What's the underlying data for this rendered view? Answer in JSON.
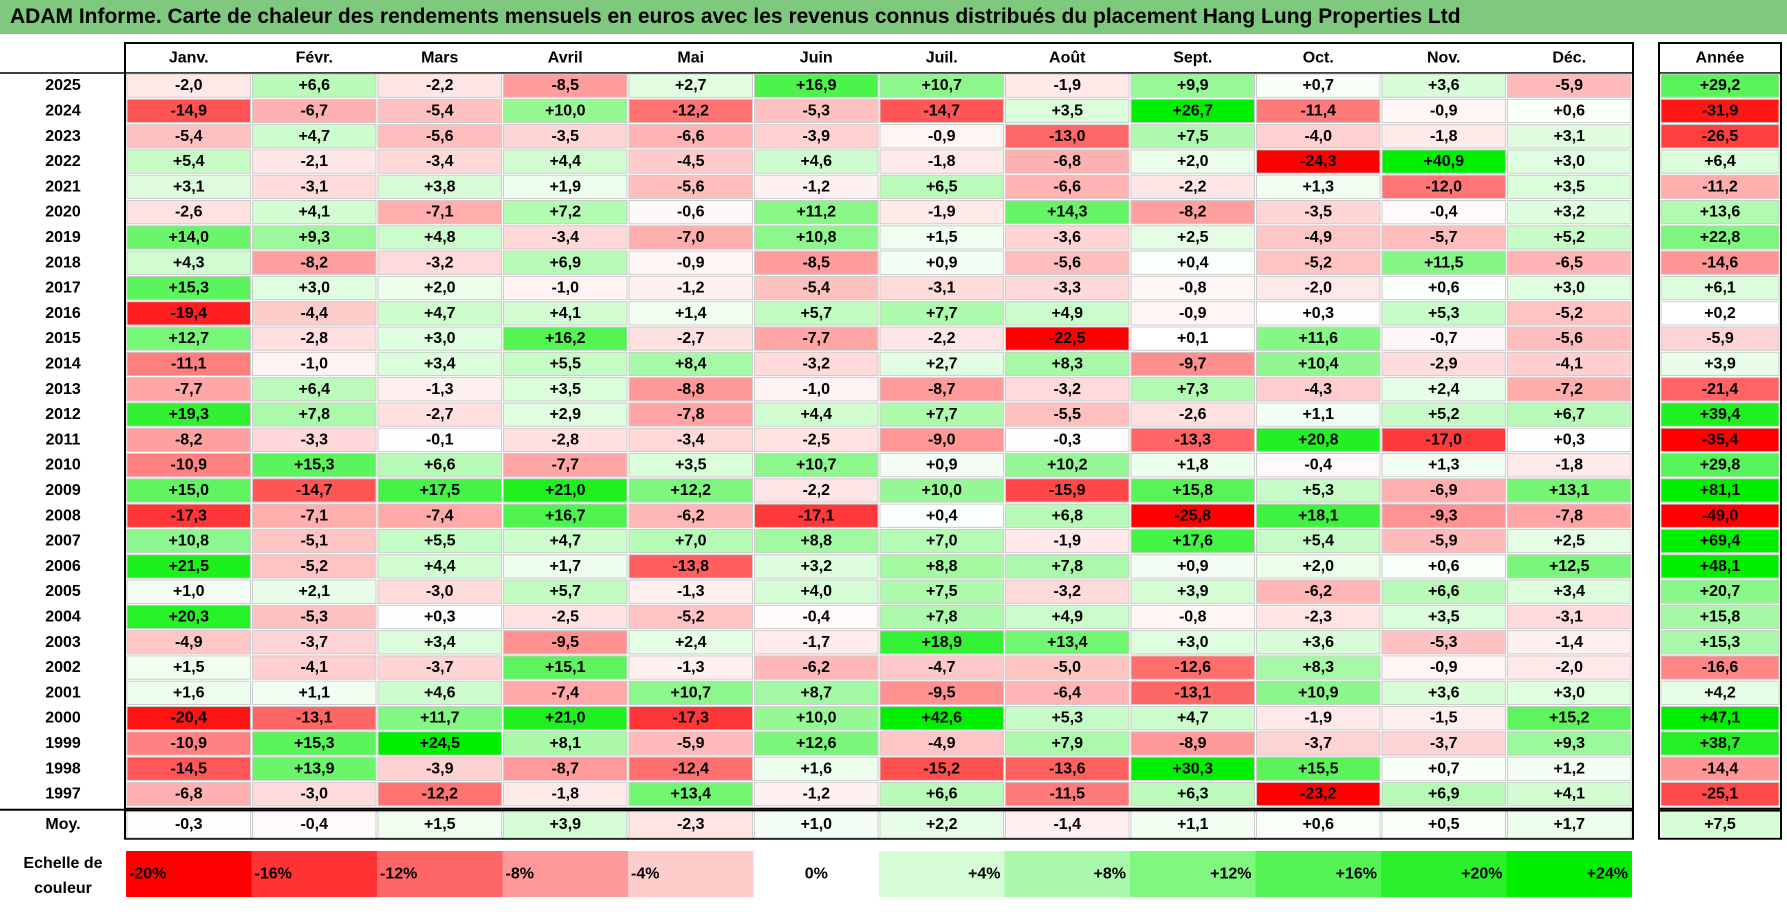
{
  "title": "ADAM Informe. Carte de chaleur des rendements mensuels en euros avec les revenus connus distribués du placement Hang Lung Properties Ltd",
  "chart_data": {
    "type": "heatmap",
    "title": "ADAM Informe. Carte de chaleur des rendements mensuels en euros avec les revenus connus distribués du placement Hang Lung Properties Ltd",
    "months": [
      "Janv.",
      "Févr.",
      "Mars",
      "Avril",
      "Mai",
      "Juin",
      "Juil.",
      "Août",
      "Sept.",
      "Oct.",
      "Nov.",
      "Déc."
    ],
    "year_header": "Année",
    "avg_label": "Moy.",
    "rows": [
      {
        "year": "2025",
        "values": [
          "-2,0",
          "+6,6",
          "-2,2",
          "-8,5",
          "+2,7",
          "+16,9",
          "+10,7",
          "-1,9",
          "+9,9",
          "+0,7",
          "+3,6",
          "-5,9"
        ],
        "annual": "+29,2"
      },
      {
        "year": "2024",
        "values": [
          "-14,9",
          "-6,7",
          "-5,4",
          "+10,0",
          "-12,2",
          "-5,3",
          "-14,7",
          "+3,5",
          "+26,7",
          "-11,4",
          "-0,9",
          "+0,6"
        ],
        "annual": "-31,9"
      },
      {
        "year": "2023",
        "values": [
          "-5,4",
          "+4,7",
          "-5,6",
          "-3,5",
          "-6,6",
          "-3,9",
          "-0,9",
          "-13,0",
          "+7,5",
          "-4,0",
          "-1,8",
          "+3,1"
        ],
        "annual": "-26,5"
      },
      {
        "year": "2022",
        "values": [
          "+5,4",
          "-2,1",
          "-3,4",
          "+4,4",
          "-4,5",
          "+4,6",
          "-1,8",
          "-6,8",
          "+2,0",
          "-24,3",
          "+40,9",
          "+3,0"
        ],
        "annual": "+6,4"
      },
      {
        "year": "2021",
        "values": [
          "+3,1",
          "-3,1",
          "+3,8",
          "+1,9",
          "-5,6",
          "-1,2",
          "+6,5",
          "-6,6",
          "-2,2",
          "+1,3",
          "-12,0",
          "+3,5"
        ],
        "annual": "-11,2"
      },
      {
        "year": "2020",
        "values": [
          "-2,6",
          "+4,1",
          "-7,1",
          "+7,2",
          "-0,6",
          "+11,2",
          "-1,9",
          "+14,3",
          "-8,2",
          "-3,5",
          "-0,4",
          "+3,2"
        ],
        "annual": "+13,6"
      },
      {
        "year": "2019",
        "values": [
          "+14,0",
          "+9,3",
          "+4,8",
          "-3,4",
          "-7,0",
          "+10,8",
          "+1,5",
          "-3,6",
          "+2,5",
          "-4,9",
          "-5,7",
          "+5,2"
        ],
        "annual": "+22,8"
      },
      {
        "year": "2018",
        "values": [
          "+4,3",
          "-8,2",
          "-3,2",
          "+6,9",
          "-0,9",
          "-8,5",
          "+0,9",
          "-5,6",
          "+0,4",
          "-5,2",
          "+11,5",
          "-6,5"
        ],
        "annual": "-14,6"
      },
      {
        "year": "2017",
        "values": [
          "+15,3",
          "+3,0",
          "+2,0",
          "-1,0",
          "-1,2",
          "-5,4",
          "-3,1",
          "-3,3",
          "-0,8",
          "-2,0",
          "+0,6",
          "+3,0"
        ],
        "annual": "+6,1"
      },
      {
        "year": "2016",
        "values": [
          "-19,4",
          "-4,4",
          "+4,7",
          "+4,1",
          "+1,4",
          "+5,7",
          "+7,7",
          "+4,9",
          "-0,9",
          "+0,3",
          "+5,3",
          "-5,2"
        ],
        "annual": "+0,2"
      },
      {
        "year": "2015",
        "values": [
          "+12,7",
          "-2,8",
          "+3,0",
          "+16,2",
          "-2,7",
          "-7,7",
          "-2,2",
          "-22,5",
          "+0,1",
          "+11,6",
          "-0,7",
          "-5,6"
        ],
        "annual": "-5,9"
      },
      {
        "year": "2014",
        "values": [
          "-11,1",
          "-1,0",
          "+3,4",
          "+5,5",
          "+8,4",
          "-3,2",
          "+2,7",
          "+8,3",
          "-9,7",
          "+10,4",
          "-2,9",
          "-4,1"
        ],
        "annual": "+3,9"
      },
      {
        "year": "2013",
        "values": [
          "-7,7",
          "+6,4",
          "-1,3",
          "+3,5",
          "-8,8",
          "-1,0",
          "-8,7",
          "-3,2",
          "+7,3",
          "-4,3",
          "+2,4",
          "-7,2"
        ],
        "annual": "-21,4"
      },
      {
        "year": "2012",
        "values": [
          "+19,3",
          "+7,8",
          "-2,7",
          "+2,9",
          "-7,8",
          "+4,4",
          "+7,7",
          "-5,5",
          "-2,6",
          "+1,1",
          "+5,2",
          "+6,7"
        ],
        "annual": "+39,4"
      },
      {
        "year": "2011",
        "values": [
          "-8,2",
          "-3,3",
          "-0,1",
          "-2,8",
          "-3,4",
          "-2,5",
          "-9,0",
          "-0,3",
          "-13,3",
          "+20,8",
          "-17,0",
          "+0,3"
        ],
        "annual": "-35,4"
      },
      {
        "year": "2010",
        "values": [
          "-10,9",
          "+15,3",
          "+6,6",
          "-7,7",
          "+3,5",
          "+10,7",
          "+0,9",
          "+10,2",
          "+1,8",
          "-0,4",
          "+1,3",
          "-1,8"
        ],
        "annual": "+29,8"
      },
      {
        "year": "2009",
        "values": [
          "+15,0",
          "-14,7",
          "+17,5",
          "+21,0",
          "+12,2",
          "-2,2",
          "+10,0",
          "-15,9",
          "+15,8",
          "+5,3",
          "-6,9",
          "+13,1"
        ],
        "annual": "+81,1"
      },
      {
        "year": "2008",
        "values": [
          "-17,3",
          "-7,1",
          "-7,4",
          "+16,7",
          "-6,2",
          "-17,1",
          "+0,4",
          "+6,8",
          "-25,8",
          "+18,1",
          "-9,3",
          "-7,8"
        ],
        "annual": "-49,0"
      },
      {
        "year": "2007",
        "values": [
          "+10,8",
          "-5,1",
          "+5,5",
          "+4,7",
          "+7,0",
          "+8,8",
          "+7,0",
          "-1,9",
          "+17,6",
          "+5,4",
          "-5,9",
          "+2,5"
        ],
        "annual": "+69,4"
      },
      {
        "year": "2006",
        "values": [
          "+21,5",
          "-5,2",
          "+4,4",
          "+1,7",
          "-13,8",
          "+3,2",
          "+8,8",
          "+7,8",
          "+0,9",
          "+2,0",
          "+0,6",
          "+12,5"
        ],
        "annual": "+48,1"
      },
      {
        "year": "2005",
        "values": [
          "+1,0",
          "+2,1",
          "-3,0",
          "+5,7",
          "-1,3",
          "+4,0",
          "+7,5",
          "-3,2",
          "+3,9",
          "-6,2",
          "+6,6",
          "+3,4"
        ],
        "annual": "+20,7"
      },
      {
        "year": "2004",
        "values": [
          "+20,3",
          "-5,3",
          "+0,3",
          "-2,5",
          "-5,2",
          "-0,4",
          "+7,8",
          "+4,9",
          "-0,8",
          "-2,3",
          "+3,5",
          "-3,1"
        ],
        "annual": "+15,8"
      },
      {
        "year": "2003",
        "values": [
          "-4,9",
          "-3,7",
          "+3,4",
          "-9,5",
          "+2,4",
          "-1,7",
          "+18,9",
          "+13,4",
          "+3,0",
          "+3,6",
          "-5,3",
          "-1,4"
        ],
        "annual": "+15,3"
      },
      {
        "year": "2002",
        "values": [
          "+1,5",
          "-4,1",
          "-3,7",
          "+15,1",
          "-1,3",
          "-6,2",
          "-4,7",
          "-5,0",
          "-12,6",
          "+8,3",
          "-0,9",
          "-2,0"
        ],
        "annual": "-16,6"
      },
      {
        "year": "2001",
        "values": [
          "+1,6",
          "+1,1",
          "+4,6",
          "-7,4",
          "+10,7",
          "+8,7",
          "-9,5",
          "-6,4",
          "-13,1",
          "+10,9",
          "+3,6",
          "+3,0"
        ],
        "annual": "+4,2"
      },
      {
        "year": "2000",
        "values": [
          "-20,4",
          "-13,1",
          "+11,7",
          "+21,0",
          "-17,3",
          "+10,0",
          "+42,6",
          "+5,3",
          "+4,7",
          "-1,9",
          "-1,5",
          "+15,2"
        ],
        "annual": "+47,1"
      },
      {
        "year": "1999",
        "values": [
          "-10,9",
          "+15,3",
          "+24,5",
          "+8,1",
          "-5,9",
          "+12,6",
          "-4,9",
          "+7,9",
          "-8,9",
          "-3,7",
          "-3,7",
          "+9,3"
        ],
        "annual": "+38,7"
      },
      {
        "year": "1998",
        "values": [
          "-14,5",
          "+13,9",
          "-3,9",
          "-8,7",
          "-12,4",
          "+1,6",
          "-15,2",
          "-13,6",
          "+30,3",
          "+15,5",
          "+0,7",
          "+1,2"
        ],
        "annual": "-14,4"
      },
      {
        "year": "1997",
        "values": [
          "-6,8",
          "-3,0",
          "-12,2",
          "-1,8",
          "+13,4",
          "-1,2",
          "+6,6",
          "-11,5",
          "+6,3",
          "-23,2",
          "+6,9",
          "+4,1"
        ],
        "annual": "-25,1"
      }
    ],
    "averages": [
      "-0,3",
      "-0,4",
      "+1,5",
      "+3,9",
      "-2,3",
      "+1,0",
      "+2,2",
      "-1,4",
      "+1,1",
      "+0,6",
      "+0,5",
      "+1,7"
    ],
    "average_annual": "+7,5",
    "scale_title": "Echelle de couleur",
    "scale": [
      "-20%",
      "-16%",
      "-12%",
      "-8%",
      "-4%",
      "0%",
      "+4%",
      "+8%",
      "+12%",
      "+16%",
      "+20%",
      "+24%"
    ],
    "scale_values": [
      -20,
      -16,
      -12,
      -8,
      -4,
      0,
      4,
      8,
      12,
      16,
      20,
      24
    ],
    "colors": {
      "red": "#ff0000",
      "white": "#ffffff",
      "green": "#00ee00",
      "title_bg": "#7fc97f",
      "annual_red": "#e60000",
      "annual_green": "#00dd00",
      "negative_text": "#000000"
    }
  }
}
